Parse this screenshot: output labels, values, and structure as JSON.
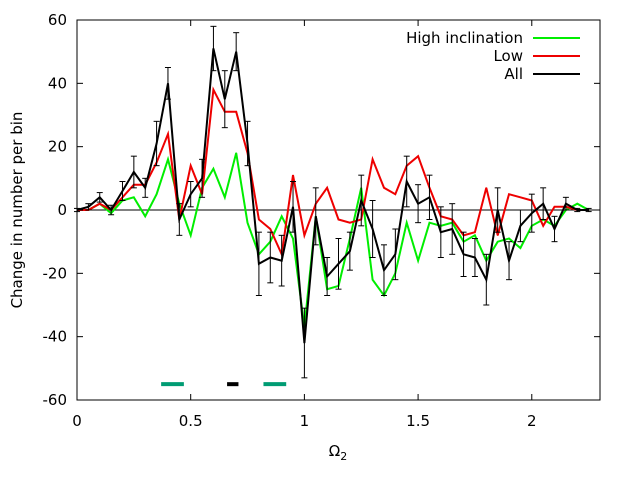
{
  "chart_data": {
    "type": "line",
    "title": "",
    "xlabel": "Ω",
    "xlabel_sub": "2",
    "ylabel": "Change in number per bin",
    "xlim": [
      0,
      2.3
    ],
    "ylim": [
      -60,
      60
    ],
    "x_ticks": [
      0,
      0.5,
      1,
      1.5,
      2
    ],
    "x_tick_labels": [
      "0",
      "0.5",
      "1",
      "1.5",
      "2"
    ],
    "y_ticks": [
      -60,
      -40,
      -20,
      0,
      20,
      40,
      60
    ],
    "y_tick_labels": [
      "-60",
      "-40",
      "-20",
      "0",
      "20",
      "40",
      "60"
    ],
    "grid": false,
    "legend_position": "top-right",
    "zero_line": true,
    "x": [
      0.0,
      0.05,
      0.1,
      0.15,
      0.2,
      0.25,
      0.3,
      0.35,
      0.4,
      0.45,
      0.5,
      0.55,
      0.6,
      0.65,
      0.7,
      0.75,
      0.8,
      0.85,
      0.9,
      0.95,
      1.0,
      1.05,
      1.1,
      1.15,
      1.2,
      1.25,
      1.3,
      1.35,
      1.4,
      1.45,
      1.5,
      1.55,
      1.6,
      1.65,
      1.7,
      1.75,
      1.8,
      1.85,
      1.9,
      1.95,
      2.0,
      2.05,
      2.1,
      2.15,
      2.2,
      2.25
    ],
    "series": [
      {
        "name": "High inclination",
        "color": "#00ee00",
        "values": [
          0,
          0,
          2,
          -1,
          3,
          4,
          -2,
          5,
          16,
          2,
          -8,
          7,
          13,
          4,
          18,
          -4,
          -14,
          -10,
          -2,
          -9,
          -37,
          -2,
          -25,
          -24,
          -9,
          7,
          -22,
          -27,
          -20,
          -4,
          -16,
          -4,
          -5,
          -4,
          -10,
          -8,
          -16,
          -10,
          -9,
          -12,
          -5,
          -3,
          -5,
          0,
          2,
          0
        ],
        "errors": []
      },
      {
        "name": "Low",
        "color": "#ee0000",
        "values": [
          0,
          0,
          2,
          0,
          4,
          8,
          8,
          15,
          24,
          -3,
          14,
          5,
          38,
          31,
          31,
          18,
          -3,
          -6,
          -14,
          11,
          -8,
          2,
          7,
          -3,
          -4,
          -3,
          16,
          7,
          5,
          14,
          17,
          7,
          -2,
          -3,
          -8,
          -7,
          7,
          -8,
          5,
          4,
          3,
          -5,
          1,
          1,
          0,
          0
        ],
        "errors": []
      },
      {
        "name": "All",
        "color": "#000000",
        "values": [
          0,
          1,
          4,
          0,
          6,
          12,
          7,
          21,
          40,
          -3,
          5,
          10,
          51,
          35,
          50,
          21,
          -17,
          -15,
          -16,
          1,
          -42,
          -2,
          -21,
          -17,
          -13,
          3,
          -6,
          -19,
          -14,
          9,
          2,
          4,
          -7,
          -6,
          -14,
          -15,
          -22,
          0,
          -16,
          -5,
          -1,
          2,
          -6,
          2,
          0,
          0
        ],
        "errors": [
          0.5,
          1,
          1.5,
          1.5,
          3,
          5,
          3,
          7,
          5,
          5,
          4,
          6,
          7,
          9,
          6,
          7,
          10,
          8,
          8,
          8,
          11,
          9,
          6,
          8,
          6,
          8,
          9,
          8,
          8,
          8,
          6,
          7,
          8,
          8,
          7,
          6,
          8,
          7,
          6,
          5,
          6,
          5,
          4,
          2,
          0.5,
          0.5
        ]
      }
    ],
    "markers": [
      {
        "name": "marker-1",
        "x_range": [
          0.37,
          0.47
        ],
        "y": -55,
        "color": "#009c73"
      },
      {
        "name": "marker-2",
        "x_range": [
          0.66,
          0.71
        ],
        "y": -55,
        "color": "#000000"
      },
      {
        "name": "marker-3",
        "x_range": [
          0.82,
          0.92
        ],
        "y": -55,
        "color": "#009c73"
      }
    ]
  }
}
